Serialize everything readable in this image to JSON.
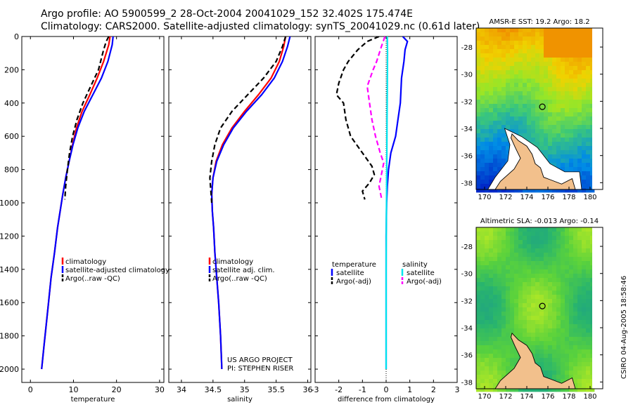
{
  "header": {
    "line1": "Argo profile: AO 5900599_2 28-Oct-2004 20041029_152 32.402S 175.474E",
    "line2": "Climatology: CARS2000. Satellite-adjusted climatology: synTS_20041029.nc (0.61d later)"
  },
  "credit": {
    "project": "US ARGO PROJECT",
    "pi": "PI: STEPHEN RISER",
    "csiro": "CSIRO 04-Aug-2005 18:58:46"
  },
  "colors": {
    "climatology": "#ff0000",
    "satellite": "#0000ff",
    "argo": "#000000",
    "diff_sal_sat": "#00e5ee",
    "diff_sal_argo": "#ff00ff"
  },
  "chart_data": [
    {
      "type": "line",
      "id": "temperature",
      "xlabel": "temperature",
      "ylabel": "",
      "xlim": [
        -2,
        31
      ],
      "ylim": [
        0,
        2080
      ],
      "y_inverted": true,
      "x_ticks": [
        0,
        10,
        20,
        30
      ],
      "y_ticks": [
        0,
        200,
        400,
        600,
        800,
        1000,
        1200,
        1400,
        1600,
        1800,
        2000
      ],
      "legend": [
        "climatology",
        "satellite-adjusted climatology",
        "Argo(..raw -QC)"
      ],
      "series": [
        {
          "name": "climatology",
          "style": "solid",
          "points": [
            [
              18.5,
              0
            ],
            [
              18.2,
              50
            ],
            [
              17.0,
              150
            ],
            [
              15.5,
              250
            ],
            [
              13.8,
              350
            ],
            [
              12.0,
              450
            ],
            [
              10.7,
              550
            ],
            [
              9.8,
              650
            ],
            [
              9.0,
              750
            ],
            [
              8.2,
              850
            ],
            [
              7.5,
              950
            ],
            [
              6.9,
              1050
            ],
            [
              6.3,
              1150
            ],
            [
              5.6,
              1300
            ],
            [
              4.8,
              1450
            ],
            [
              4.2,
              1600
            ],
            [
              3.6,
              1750
            ],
            [
              3.2,
              1850
            ],
            [
              2.8,
              1950
            ],
            [
              2.6,
              2000
            ]
          ]
        },
        {
          "name": "satellite",
          "style": "solid",
          "points": [
            [
              19.2,
              0
            ],
            [
              19.0,
              50
            ],
            [
              18.0,
              150
            ],
            [
              16.5,
              250
            ],
            [
              14.5,
              350
            ],
            [
              12.5,
              450
            ],
            [
              11.0,
              550
            ],
            [
              9.9,
              650
            ],
            [
              9.0,
              750
            ],
            [
              8.2,
              850
            ],
            [
              7.5,
              950
            ],
            [
              6.9,
              1050
            ],
            [
              6.3,
              1150
            ],
            [
              5.6,
              1300
            ],
            [
              4.8,
              1450
            ],
            [
              4.2,
              1600
            ],
            [
              3.6,
              1750
            ],
            [
              3.2,
              1850
            ],
            [
              2.8,
              1950
            ],
            [
              2.6,
              2000
            ]
          ]
        },
        {
          "name": "argo",
          "style": "dashed",
          "points": [
            [
              18.2,
              0
            ],
            [
              17.6,
              30
            ],
            [
              17.0,
              80
            ],
            [
              15.8,
              200
            ],
            [
              14.0,
              300
            ],
            [
              12.2,
              400
            ],
            [
              10.8,
              500
            ],
            [
              9.8,
              600
            ],
            [
              9.1,
              700
            ],
            [
              8.6,
              800
            ],
            [
              8.2,
              900
            ],
            [
              8.0,
              980
            ]
          ]
        }
      ]
    },
    {
      "type": "line",
      "id": "salinity",
      "xlabel": "salinity",
      "ylabel": "",
      "xlim": [
        33.8,
        36.05
      ],
      "ylim": [
        0,
        2080
      ],
      "y_inverted": true,
      "x_ticks": [
        34,
        34.5,
        35,
        35.5,
        36
      ],
      "y_ticks": [
        0,
        200,
        400,
        600,
        800,
        1000,
        1200,
        1400,
        1600,
        1800,
        2000
      ],
      "legend": [
        "climatology",
        "satellite adj. clim.",
        "Argo(..raw -QC)"
      ],
      "series": [
        {
          "name": "climatology",
          "style": "solid",
          "points": [
            [
              35.65,
              0
            ],
            [
              35.62,
              60
            ],
            [
              35.55,
              150
            ],
            [
              35.42,
              250
            ],
            [
              35.22,
              350
            ],
            [
              35.0,
              450
            ],
            [
              34.8,
              550
            ],
            [
              34.65,
              650
            ],
            [
              34.55,
              750
            ],
            [
              34.5,
              850
            ],
            [
              34.48,
              950
            ],
            [
              34.49,
              1050
            ],
            [
              34.51,
              1150
            ],
            [
              34.53,
              1300
            ],
            [
              34.56,
              1450
            ],
            [
              34.59,
              1600
            ],
            [
              34.62,
              1800
            ],
            [
              34.64,
              2000
            ]
          ]
        },
        {
          "name": "satellite",
          "style": "solid",
          "points": [
            [
              35.72,
              0
            ],
            [
              35.68,
              60
            ],
            [
              35.6,
              150
            ],
            [
              35.47,
              250
            ],
            [
              35.27,
              350
            ],
            [
              35.03,
              450
            ],
            [
              34.82,
              550
            ],
            [
              34.67,
              650
            ],
            [
              34.56,
              750
            ],
            [
              34.5,
              850
            ],
            [
              34.48,
              950
            ],
            [
              34.49,
              1050
            ],
            [
              34.51,
              1150
            ],
            [
              34.53,
              1300
            ],
            [
              34.56,
              1450
            ],
            [
              34.59,
              1600
            ],
            [
              34.62,
              1800
            ],
            [
              34.64,
              2000
            ]
          ]
        },
        {
          "name": "argo",
          "style": "dashed",
          "points": [
            [
              35.65,
              0
            ],
            [
              35.6,
              60
            ],
            [
              35.5,
              150
            ],
            [
              35.3,
              250
            ],
            [
              35.05,
              350
            ],
            [
              34.8,
              450
            ],
            [
              34.62,
              550
            ],
            [
              34.53,
              650
            ],
            [
              34.48,
              750
            ],
            [
              34.45,
              850
            ],
            [
              34.47,
              950
            ],
            [
              34.48,
              1000
            ]
          ]
        }
      ]
    },
    {
      "type": "line",
      "id": "difference",
      "xlabel": "difference from climatology",
      "ylabel": "",
      "xlim": [
        -3,
        3
      ],
      "ylim": [
        0,
        2080
      ],
      "y_inverted": true,
      "x_ticks": [
        -3,
        -2,
        -1,
        0,
        1,
        2,
        3
      ],
      "y_ticks": [
        0,
        200,
        400,
        600,
        800,
        1000,
        1200,
        1400,
        1600,
        1800,
        2000
      ],
      "legend_left": [
        "temperature",
        "satellite",
        "Argo(-adj)"
      ],
      "legend_right": [
        "salinity",
        "satellite",
        "Argo(-adj)"
      ],
      "series": [
        {
          "name": "temperature satellite",
          "style": "solid",
          "points": [
            [
              0.7,
              0
            ],
            [
              0.9,
              30
            ],
            [
              0.8,
              80
            ],
            [
              0.75,
              150
            ],
            [
              0.65,
              250
            ],
            [
              0.6,
              400
            ],
            [
              0.5,
              500
            ],
            [
              0.4,
              600
            ],
            [
              0.2,
              700
            ],
            [
              0.1,
              800
            ],
            [
              0.05,
              900
            ],
            [
              0.02,
              1000
            ],
            [
              0.0,
              1200
            ],
            [
              0.0,
              1500
            ],
            [
              0.0,
              2000
            ]
          ]
        },
        {
          "name": "salinity satellite",
          "style": "solid",
          "points": [
            [
              0.05,
              0
            ],
            [
              0.06,
              100
            ],
            [
              0.05,
              300
            ],
            [
              0.04,
              500
            ],
            [
              0.03,
              700
            ],
            [
              0.02,
              900
            ],
            [
              0.01,
              1100
            ],
            [
              0.0,
              1400
            ],
            [
              0.0,
              2000
            ]
          ]
        },
        {
          "name": "temperature argo",
          "style": "dashed",
          "points": [
            [
              -0.3,
              0
            ],
            [
              -0.8,
              30
            ],
            [
              -1.2,
              80
            ],
            [
              -1.6,
              150
            ],
            [
              -1.8,
              200
            ],
            [
              -2.0,
              280
            ],
            [
              -2.1,
              350
            ],
            [
              -1.8,
              400
            ],
            [
              -1.7,
              500
            ],
            [
              -1.5,
              600
            ],
            [
              -1.0,
              700
            ],
            [
              -0.6,
              780
            ],
            [
              -0.5,
              830
            ],
            [
              -0.7,
              880
            ],
            [
              -1.0,
              930
            ],
            [
              -0.9,
              980
            ]
          ]
        },
        {
          "name": "salinity argo",
          "style": "dashed",
          "points": [
            [
              -0.05,
              0
            ],
            [
              -0.2,
              60
            ],
            [
              -0.4,
              150
            ],
            [
              -0.55,
              200
            ],
            [
              -0.8,
              300
            ],
            [
              -0.7,
              400
            ],
            [
              -0.6,
              500
            ],
            [
              -0.45,
              600
            ],
            [
              -0.25,
              700
            ],
            [
              -0.1,
              760
            ],
            [
              -0.2,
              830
            ],
            [
              -0.3,
              900
            ],
            [
              -0.2,
              970
            ]
          ]
        }
      ]
    }
  ],
  "maps": [
    {
      "title": "AMSR-E SST: 19.2 Argo: 18.2",
      "x_ticks": [
        170,
        172,
        174,
        176,
        178,
        180
      ],
      "y_ticks": [
        -28,
        -30,
        -32,
        -34,
        -36,
        -38
      ],
      "xlim": [
        169.2,
        181.2
      ],
      "ylim": [
        -38.5,
        -26.6
      ],
      "marker": [
        175.474,
        -32.402
      ],
      "palette": "sst"
    },
    {
      "title": "Altimetric SLA: -0.013 Argo: -0.14",
      "x_ticks": [
        170,
        172,
        174,
        176,
        178,
        180
      ],
      "y_ticks": [
        -28,
        -30,
        -32,
        -34,
        -36,
        -38
      ],
      "xlim": [
        169.2,
        181.2
      ],
      "ylim": [
        -38.5,
        -26.6
      ],
      "marker": [
        175.474,
        -32.402
      ],
      "palette": "sla"
    }
  ]
}
